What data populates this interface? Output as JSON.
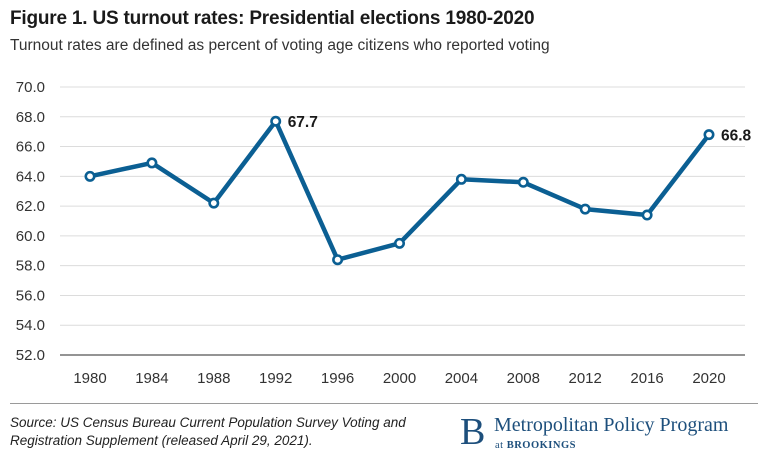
{
  "header": {
    "title": "Figure 1. US turnout rates: Presidential elections 1980-2020",
    "subtitle": "Turnout rates are defined as percent of voting age citizens who reported voting"
  },
  "chart_data": {
    "type": "line",
    "title": "Figure 1. US turnout rates: Presidential elections 1980-2020",
    "subtitle": "Turnout rates are defined as percent of voting age citizens who reported voting",
    "xlabel": "",
    "ylabel": "",
    "categories": [
      "1980",
      "1984",
      "1988",
      "1992",
      "1996",
      "2000",
      "2004",
      "2008",
      "2012",
      "2016",
      "2020"
    ],
    "series": [
      {
        "values": [
          64.0,
          64.9,
          62.2,
          67.7,
          58.4,
          59.5,
          63.8,
          63.6,
          61.8,
          61.4,
          66.8
        ]
      }
    ],
    "annotations": [
      {
        "category": "1992",
        "text": "67.7"
      },
      {
        "category": "2020",
        "text": "66.8"
      }
    ],
    "yticks": [
      "52.0",
      "54.0",
      "56.0",
      "58.0",
      "60.0",
      "62.0",
      "64.0",
      "66.0",
      "68.0",
      "70.0"
    ],
    "ylim": [
      52,
      70
    ],
    "grid": true,
    "legend": "none",
    "colors": {
      "line": "#0b5f93",
      "marker_fill": "#ffffff",
      "grid": "#dcdcdc",
      "axis": "#555555"
    }
  },
  "footer": {
    "source": "Source: US Census Bureau Current Population Survey Voting and Registration Supplement (released April 29, 2021).",
    "brand_mark": "B",
    "brand_name": "Metropolitan Policy Program",
    "brand_at": "at",
    "brand_org": "BROOKINGS"
  }
}
